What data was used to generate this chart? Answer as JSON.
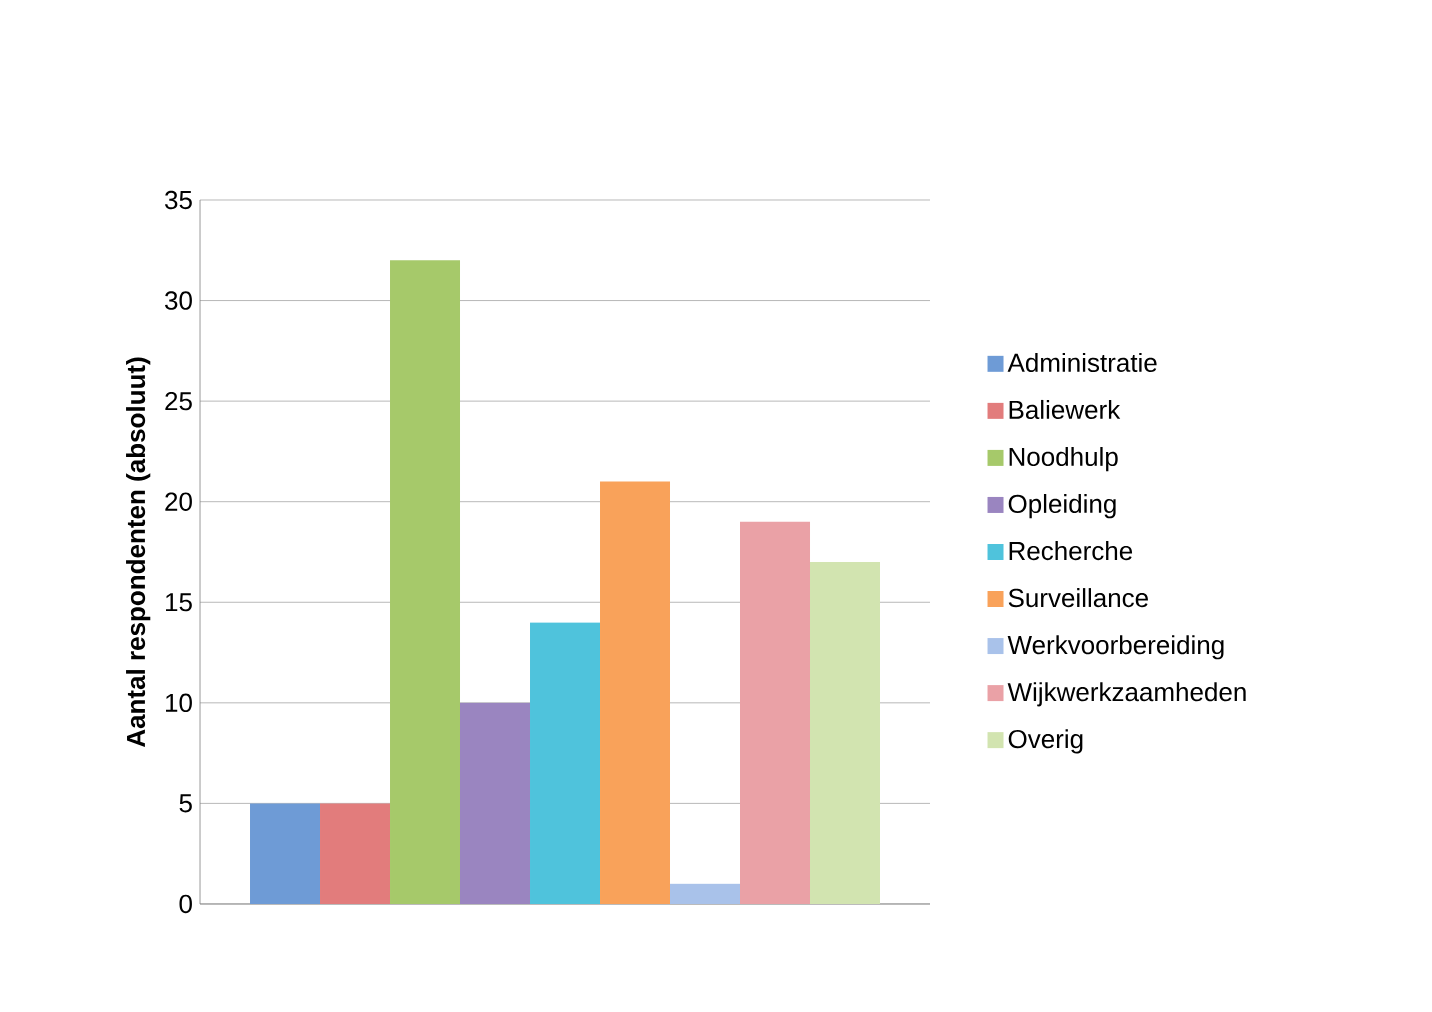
{
  "chart_data": {
    "type": "bar",
    "ylabel": "Aantal respondenten (absoluut)",
    "categories": [
      null
    ],
    "series": [
      {
        "name": "Administratie",
        "color": "#6e9bd6",
        "values": [
          5
        ]
      },
      {
        "name": "Baliewerk",
        "color": "#e27c7c",
        "values": [
          5
        ]
      },
      {
        "name": "Noodhulp",
        "color": "#a6c96a",
        "values": [
          32
        ]
      },
      {
        "name": "Opleiding",
        "color": "#9a85c0",
        "values": [
          10
        ]
      },
      {
        "name": "Recherche",
        "color": "#4fc3dc",
        "values": [
          14
        ]
      },
      {
        "name": "Surveillance",
        "color": "#f9a25a",
        "values": [
          21
        ]
      },
      {
        "name": "Werkvoorbereiding",
        "color": "#a9c2ea",
        "values": [
          1
        ]
      },
      {
        "name": "Wijkwerkzaamheden",
        "color": "#eaa1a6",
        "values": [
          19
        ]
      },
      {
        "name": "Overig",
        "color": "#d2e4b0",
        "values": [
          17
        ]
      }
    ],
    "ylim": [
      0,
      35
    ],
    "yticks": [
      0,
      5,
      10,
      15,
      20,
      25,
      30,
      35
    ],
    "grid": "y",
    "legend": "right"
  }
}
